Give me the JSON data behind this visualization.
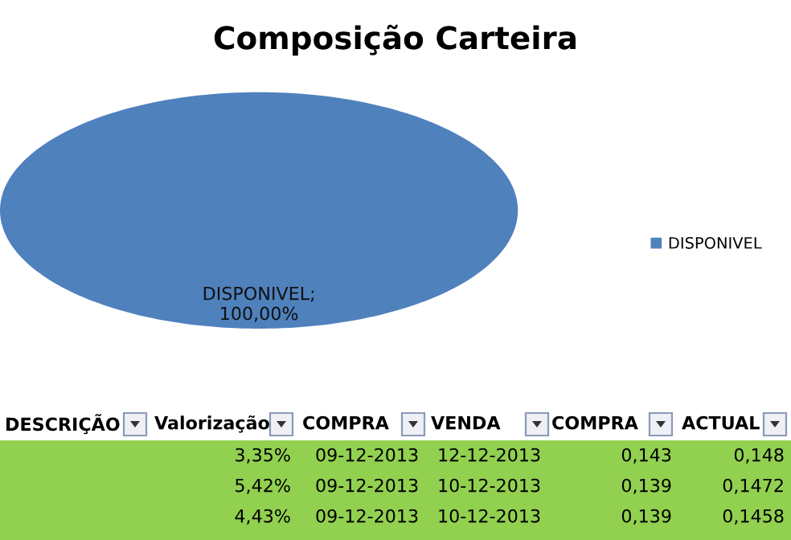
{
  "chart_data": [
    {
      "type": "pie",
      "title": "Composição Carteira",
      "categories": [
        "DISPONIVEL"
      ],
      "values": [
        100
      ],
      "colors": [
        "#4f81bd"
      ],
      "value_labels": [
        "DISPONIVEL;\n100,00%"
      ],
      "legend": "right"
    },
    {
      "type": "other",
      "annotations": [
        "DESCRIÇÃO",
        "Valorização",
        "COMPRA",
        "VENDA",
        "COMPRA",
        "ACTUAL",
        "3,35%",
        "09-12-2013",
        "12-12-2013",
        "0,143",
        "0,148",
        "5,42%",
        "09-12-2013",
        "10-12-2013",
        "0,139",
        "0,1472",
        "4,43%",
        "09-12-2013",
        "10-12-2013",
        "0,139",
        "0,1458"
      ]
    }
  ]
}
